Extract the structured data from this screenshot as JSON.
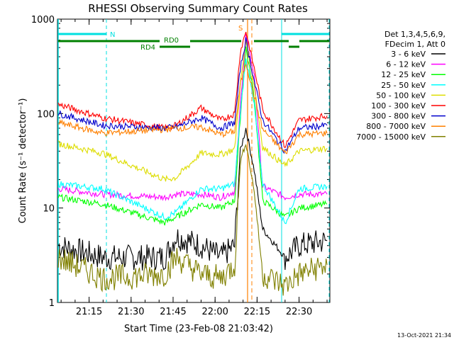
{
  "chart_data": {
    "type": "line",
    "title": "RHESSI Observing Summary Count Rates",
    "xlabel": "Start Time (23-Feb-08 21:03:42)",
    "ylabel": "Count Rate (s⁻¹ detector⁻¹)",
    "yscale": "log",
    "ylim": [
      1,
      1000
    ],
    "xlim": [
      "21:03:42",
      "22:41:00"
    ],
    "x_ticks": [
      "21:15",
      "21:30",
      "21:45",
      "22:00",
      "22:15",
      "22:30"
    ],
    "y_ticks": [
      "1",
      "10",
      "100",
      "1000"
    ],
    "legend_header": [
      "Det 1,3,4,5,6,9,",
      "FDecim 1, Att 0"
    ],
    "legend_position": "right",
    "series": [
      {
        "name": "3 - 6 keV",
        "color": "#000000",
        "x": [
          "21:04",
          "21:20",
          "21:42",
          "21:46",
          "21:55",
          "22:02",
          "22:07",
          "22:09",
          "22:11",
          "22:14",
          "22:17",
          "22:25",
          "22:30",
          "22:40"
        ],
        "y": [
          4,
          3,
          3,
          5,
          4,
          3,
          4,
          40,
          70,
          25,
          6,
          3,
          4,
          4.5
        ]
      },
      {
        "name": "6 - 12 keV",
        "color": "#ff00ff",
        "x": [
          "21:04",
          "21:20",
          "21:42",
          "21:46",
          "21:55",
          "22:02",
          "22:07",
          "22:09",
          "22:11",
          "22:14",
          "22:17",
          "22:25",
          "22:30",
          "22:40"
        ],
        "y": [
          16,
          14,
          13,
          14,
          14,
          13,
          15,
          120,
          700,
          250,
          17,
          13,
          14,
          14
        ]
      },
      {
        "name": "12 - 25 keV",
        "color": "#00ff00",
        "x": [
          "21:04",
          "21:20",
          "21:42",
          "21:46",
          "21:55",
          "22:02",
          "22:07",
          "22:09",
          "22:11",
          "22:14",
          "22:17",
          "22:25",
          "22:30",
          "22:40"
        ],
        "y": [
          13,
          11,
          7,
          8,
          11,
          10,
          12,
          90,
          500,
          150,
          12,
          8,
          10,
          11
        ]
      },
      {
        "name": "25 - 50 keV",
        "color": "#00ffff",
        "x": [
          "21:04",
          "21:20",
          "21:42",
          "21:46",
          "21:55",
          "22:02",
          "22:07",
          "22:09",
          "22:11",
          "22:14",
          "22:17",
          "22:25",
          "22:30",
          "22:40"
        ],
        "y": [
          18,
          16,
          8,
          9,
          16,
          16,
          18,
          100,
          400,
          120,
          18,
          7,
          16,
          17
        ]
      },
      {
        "name": "50 - 100 keV",
        "color": "#dddd00",
        "x": [
          "21:04",
          "21:20",
          "21:42",
          "21:46",
          "21:55",
          "22:02",
          "22:07",
          "22:09",
          "22:11",
          "22:14",
          "22:17",
          "22:25",
          "22:30",
          "22:40"
        ],
        "y": [
          48,
          38,
          20,
          21,
          38,
          37,
          42,
          200,
          600,
          200,
          44,
          28,
          40,
          43
        ]
      },
      {
        "name": "100 - 300 keV",
        "color": "#ff0000",
        "x": [
          "21:04",
          "21:20",
          "21:42",
          "21:46",
          "21:55",
          "22:02",
          "22:07",
          "22:09",
          "22:11",
          "22:14",
          "22:17",
          "22:25",
          "22:30",
          "22:40"
        ],
        "y": [
          125,
          90,
          70,
          75,
          115,
          85,
          100,
          450,
          750,
          300,
          110,
          45,
          85,
          95
        ]
      },
      {
        "name": "300 - 800 keV",
        "color": "#0000cc",
        "x": [
          "21:04",
          "21:20",
          "21:42",
          "21:46",
          "21:55",
          "22:02",
          "22:07",
          "22:09",
          "22:11",
          "22:14",
          "22:17",
          "22:25",
          "22:30",
          "22:40"
        ],
        "y": [
          100,
          75,
          70,
          72,
          90,
          70,
          80,
          300,
          600,
          220,
          85,
          40,
          70,
          75
        ]
      },
      {
        "name": "800 - 7000 keV",
        "color": "#ff8000",
        "x": [
          "21:04",
          "21:20",
          "21:42",
          "21:46",
          "21:55",
          "22:02",
          "22:07",
          "22:09",
          "22:11",
          "22:14",
          "22:17",
          "22:25",
          "22:30",
          "22:40"
        ],
        "y": [
          80,
          62,
          68,
          70,
          72,
          60,
          65,
          200,
          350,
          150,
          68,
          38,
          60,
          62
        ]
      },
      {
        "name": "7000 - 15000 keV",
        "color": "#808000",
        "x": [
          "21:04",
          "21:20",
          "21:42",
          "21:46",
          "21:55",
          "22:02",
          "22:07",
          "22:09",
          "22:11",
          "22:14",
          "22:17",
          "22:25",
          "22:30",
          "22:40"
        ],
        "y": [
          3,
          1.8,
          2,
          3,
          2,
          1.8,
          2.5,
          30,
          50,
          15,
          2,
          1.5,
          2,
          2.5
        ]
      }
    ],
    "annotations": [
      "RD0",
      "RD4",
      "S",
      "N"
    ]
  },
  "timestamp": "13-Oct-2021 21:34"
}
